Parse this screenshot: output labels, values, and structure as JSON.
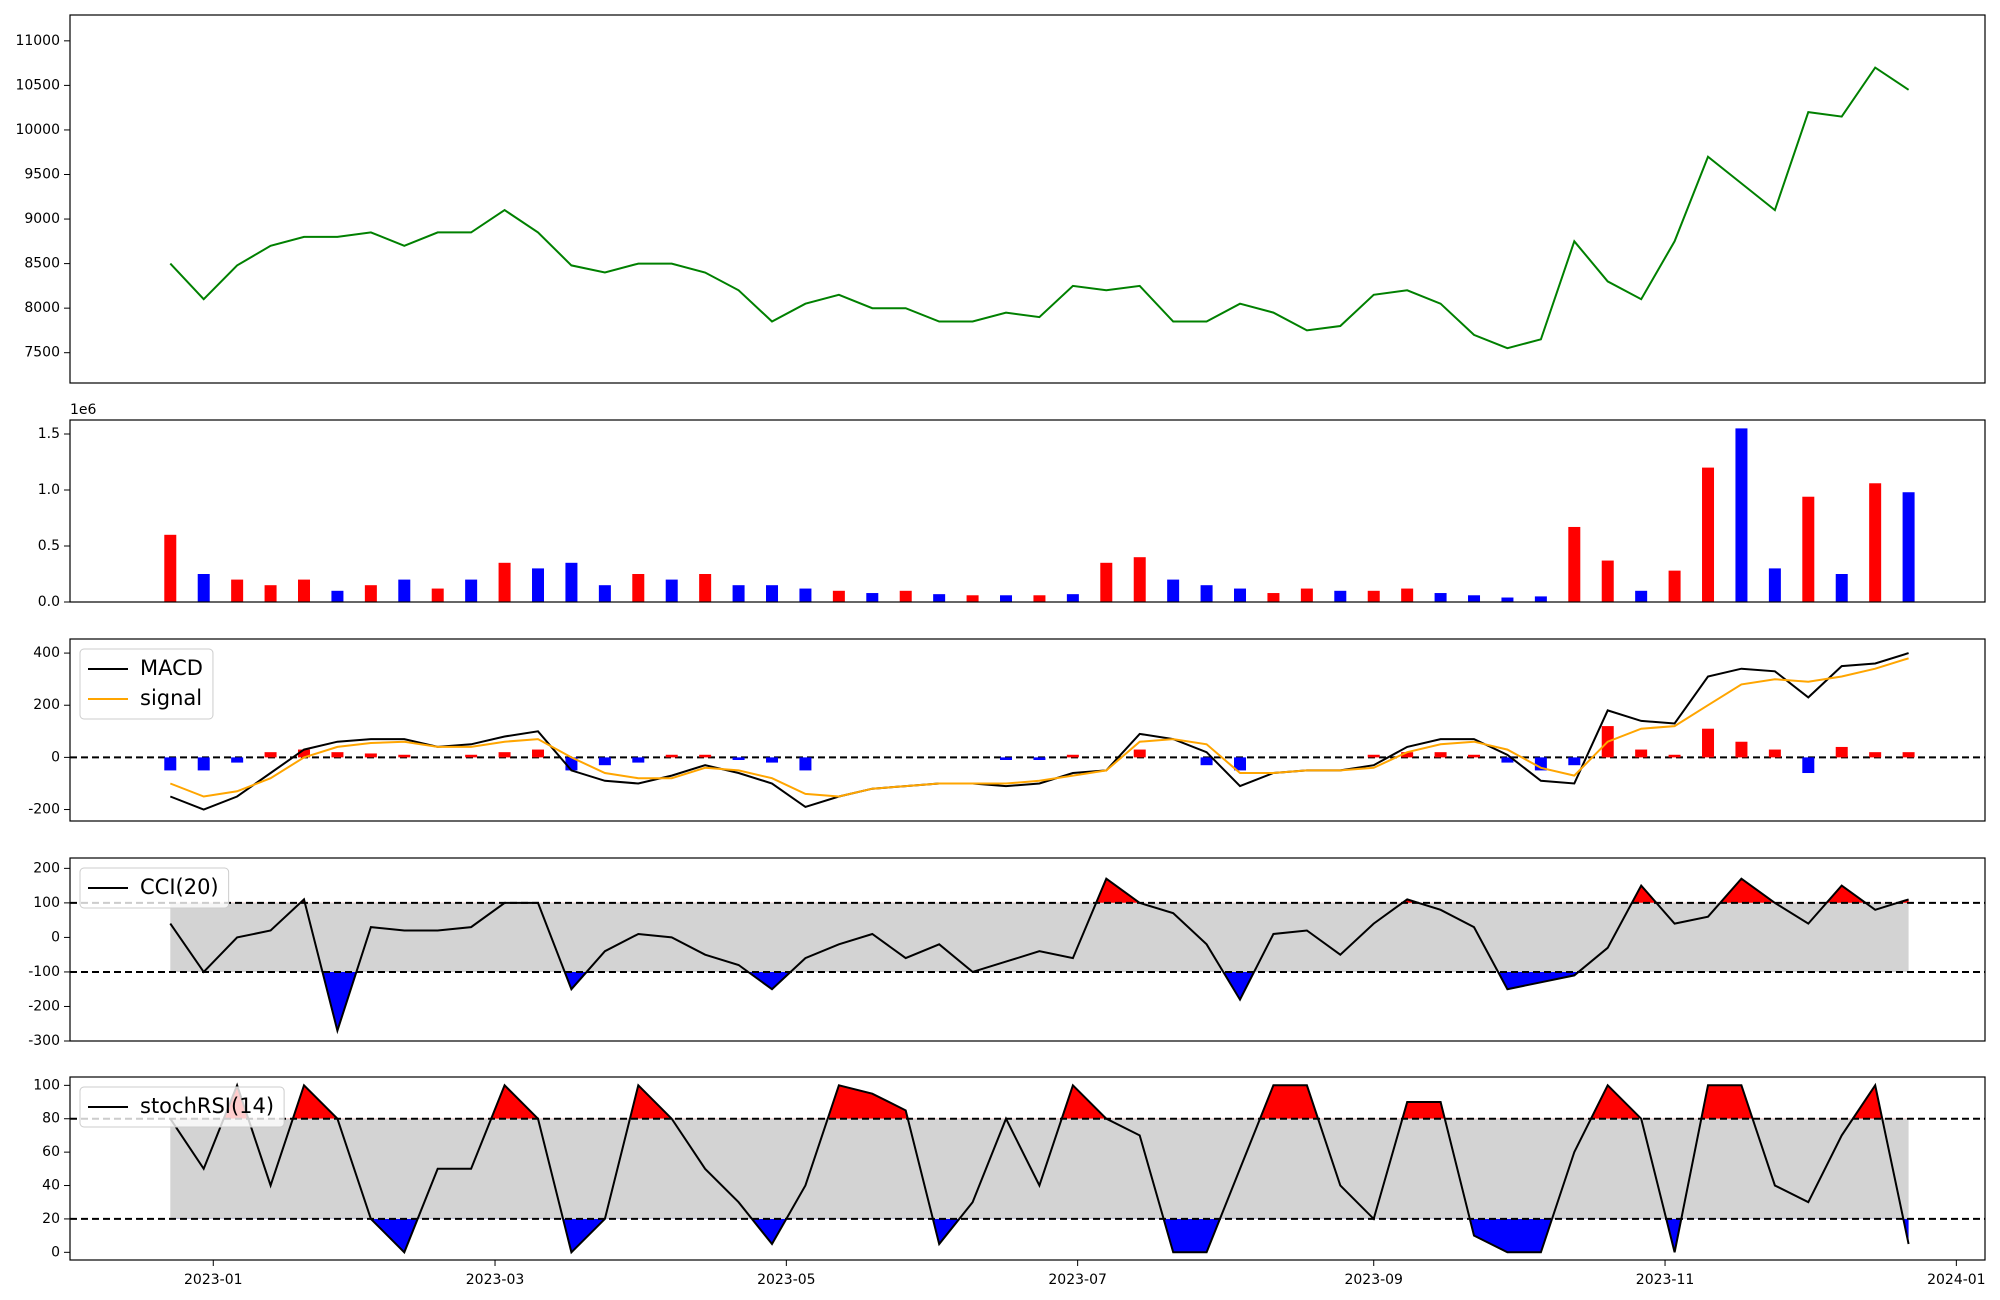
{
  "chart_data": [
    {
      "type": "line",
      "xlim": [
        -30,
        371
      ],
      "ylim": [
        7160,
        11290
      ],
      "yticks": [
        7500,
        8000,
        8500,
        9000,
        9500,
        10000,
        10500,
        11000
      ],
      "x": [
        -9,
        -2,
        5,
        12,
        19,
        26,
        33,
        40,
        47,
        54,
        61,
        68,
        75,
        82,
        89,
        96,
        103,
        110,
        117,
        124,
        131,
        138,
        145,
        152,
        159,
        166,
        173,
        180,
        187,
        194,
        201,
        208,
        215,
        222,
        229,
        236,
        243,
        250,
        257,
        264,
        271,
        278,
        285,
        292,
        299,
        306,
        313,
        320,
        327,
        334,
        341,
        348,
        355
      ],
      "series": [
        {
          "color": "green",
          "values": [
            8500,
            8100,
            8480,
            8700,
            8800,
            8800,
            8850,
            8700,
            8850,
            8850,
            9100,
            8850,
            8480,
            8400,
            8500,
            8500,
            8400,
            8200,
            7850,
            8050,
            8150,
            8000,
            8000,
            7850,
            7850,
            7950,
            7900,
            8250,
            8200,
            8250,
            7850,
            7850,
            8050,
            7950,
            7750,
            7800,
            8150,
            8200,
            8050,
            7700,
            7550,
            7650,
            8750,
            8300,
            8100,
            8750,
            9700,
            9400,
            9100,
            10200,
            10150,
            10700,
            10450
          ]
        }
      ]
    },
    {
      "type": "bar",
      "xlim": [
        -30,
        371
      ],
      "ylim": [
        0,
        1.625
      ],
      "y_offset_label": "1e6",
      "yticks": [
        {
          "value": 0,
          "label": "0.0"
        },
        0.5,
        {
          "value": 1,
          "label": "1.0"
        },
        1.5
      ],
      "x": [
        -9,
        -2,
        5,
        12,
        19,
        26,
        33,
        40,
        47,
        54,
        61,
        68,
        75,
        82,
        89,
        96,
        103,
        110,
        117,
        124,
        131,
        138,
        145,
        152,
        159,
        166,
        173,
        180,
        187,
        194,
        201,
        208,
        215,
        222,
        229,
        236,
        243,
        250,
        257,
        264,
        271,
        278,
        285,
        292,
        299,
        306,
        313,
        320,
        327,
        334,
        341,
        348,
        355
      ],
      "values": [
        0.6,
        0.25,
        0.2,
        0.15,
        0.2,
        0.1,
        0.15,
        0.2,
        0.12,
        0.2,
        0.35,
        0.3,
        0.35,
        0.15,
        0.25,
        0.2,
        0.25,
        0.15,
        0.15,
        0.12,
        0.1,
        0.08,
        0.1,
        0.07,
        0.06,
        0.06,
        0.06,
        0.07,
        0.35,
        0.4,
        0.2,
        0.15,
        0.12,
        0.08,
        0.12,
        0.1,
        0.1,
        0.12,
        0.08,
        0.06,
        0.04,
        0.05,
        0.67,
        0.37,
        0.1,
        0.28,
        1.2,
        1.55,
        0.3,
        0.94,
        0.25,
        1.06,
        0.98
      ],
      "colors": [
        "#f00",
        "#00f",
        "#f00",
        "#f00",
        "#f00",
        "#00f",
        "#f00",
        "#00f",
        "#f00",
        "#00f",
        "#f00",
        "#00f",
        "#00f",
        "#00f",
        "#f00",
        "#00f",
        "#f00",
        "#00f",
        "#00f",
        "#00f",
        "#f00",
        "#00f",
        "#f00",
        "#00f",
        "#f00",
        "#00f",
        "#f00",
        "#00f",
        "#f00",
        "#f00",
        "#00f",
        "#00f",
        "#00f",
        "#f00",
        "#f00",
        "#00f",
        "#f00",
        "#f00",
        "#00f",
        "#00f",
        "#00f",
        "#00f",
        "#f00",
        "#f00",
        "#00f",
        "#f00",
        "#f00",
        "#00f",
        "#00f",
        "#f00",
        "#00f",
        "#f00",
        "#00f"
      ]
    },
    {
      "type": "line",
      "xlim": [
        -30,
        371
      ],
      "ylim": [
        -244,
        454
      ],
      "yticks": [
        -200,
        0,
        200,
        400
      ],
      "hlines": [
        0
      ],
      "legend": "upper left",
      "x": [
        -9,
        -2,
        5,
        12,
        19,
        26,
        33,
        40,
        47,
        54,
        61,
        68,
        75,
        82,
        89,
        96,
        103,
        110,
        117,
        124,
        131,
        138,
        145,
        152,
        159,
        166,
        173,
        180,
        187,
        194,
        201,
        208,
        215,
        222,
        229,
        236,
        243,
        250,
        257,
        264,
        271,
        278,
        285,
        292,
        299,
        306,
        313,
        320,
        327,
        334,
        341,
        348,
        355
      ],
      "series": [
        {
          "name": "MACD",
          "color": "black",
          "values": [
            -150,
            -200,
            -150,
            -60,
            30,
            60,
            70,
            70,
            40,
            50,
            80,
            100,
            -50,
            -90,
            -100,
            -70,
            -30,
            -60,
            -100,
            -190,
            -150,
            -120,
            -110,
            -100,
            -100,
            -110,
            -100,
            -60,
            -50,
            90,
            70,
            20,
            -110,
            -60,
            -50,
            -50,
            -30,
            40,
            70,
            70,
            10,
            -90,
            -100,
            180,
            140,
            130,
            310,
            340,
            330,
            230,
            350,
            360,
            400
          ]
        },
        {
          "name": "signal",
          "color": "orange",
          "values": [
            -100,
            -150,
            -130,
            -80,
            0,
            40,
            55,
            60,
            40,
            40,
            60,
            70,
            0,
            -60,
            -80,
            -80,
            -40,
            -50,
            -80,
            -140,
            -150,
            -120,
            -110,
            -100,
            -100,
            -100,
            -90,
            -70,
            -50,
            60,
            70,
            50,
            -60,
            -60,
            -50,
            -50,
            -40,
            20,
            50,
            60,
            30,
            -40,
            -70,
            60,
            110,
            120,
            200,
            280,
            300,
            290,
            310,
            340,
            380
          ]
        }
      ],
      "histogram": {
        "pos_color": "red",
        "neg_color": "blue",
        "values": [
          -50,
          -50,
          -20,
          20,
          30,
          20,
          15,
          10,
          0,
          10,
          20,
          30,
          -50,
          -30,
          -20,
          10,
          10,
          -10,
          -20,
          -50,
          0,
          0,
          0,
          0,
          0,
          -10,
          -10,
          10,
          0,
          30,
          0,
          -30,
          -50,
          0,
          0,
          0,
          10,
          20,
          20,
          10,
          -20,
          -50,
          -30,
          120,
          30,
          10,
          110,
          60,
          30,
          -60,
          40,
          20,
          20
        ]
      }
    },
    {
      "type": "oscillator",
      "xlim": [
        -30,
        371
      ],
      "ylim": [
        -300,
        230
      ],
      "yticks": [
        -300,
        -200,
        -100,
        0,
        100,
        200
      ],
      "hlines": [
        -100,
        100
      ],
      "legend": "upper left",
      "band_color": "lightgray",
      "above_color": "red",
      "below_color": "blue",
      "x": [
        -9,
        -2,
        5,
        12,
        19,
        26,
        33,
        40,
        47,
        54,
        61,
        68,
        75,
        82,
        89,
        96,
        103,
        110,
        117,
        124,
        131,
        138,
        145,
        152,
        159,
        166,
        173,
        180,
        187,
        194,
        201,
        208,
        215,
        222,
        229,
        236,
        243,
        250,
        257,
        264,
        271,
        278,
        285,
        292,
        299,
        306,
        313,
        320,
        327,
        334,
        341,
        348,
        355
      ],
      "series": [
        {
          "name": "CCI(20)",
          "color": "black",
          "values": [
            40,
            -100,
            0,
            20,
            110,
            -270,
            30,
            20,
            20,
            30,
            100,
            100,
            -150,
            -40,
            10,
            0,
            -50,
            -80,
            -150,
            -60,
            -20,
            10,
            -60,
            -20,
            -100,
            -70,
            -40,
            -60,
            170,
            100,
            70,
            -20,
            -180,
            10,
            20,
            -50,
            40,
            110,
            80,
            30,
            -150,
            -130,
            -110,
            -30,
            150,
            40,
            60,
            170,
            100,
            40,
            150,
            80,
            110
          ]
        }
      ]
    },
    {
      "type": "oscillator",
      "xlim": [
        -30,
        371
      ],
      "ylim": [
        -4.6,
        105
      ],
      "yticks": [
        0,
        20,
        40,
        60,
        80,
        100
      ],
      "hlines": [
        20,
        80
      ],
      "legend": "upper left",
      "band_color": "lightgray",
      "above_color": "red",
      "below_color": "blue",
      "xticks": [
        {
          "value": 0,
          "label": "2023-01"
        },
        {
          "value": 59,
          "label": "2023-03"
        },
        {
          "value": 120,
          "label": "2023-05"
        },
        {
          "value": 181,
          "label": "2023-07"
        },
        {
          "value": 243,
          "label": "2023-09"
        },
        {
          "value": 304,
          "label": "2023-11"
        },
        {
          "value": 365,
          "label": "2024-01"
        }
      ],
      "x": [
        -9,
        -2,
        5,
        12,
        19,
        26,
        33,
        40,
        47,
        54,
        61,
        68,
        75,
        82,
        89,
        96,
        103,
        110,
        117,
        124,
        131,
        138,
        145,
        152,
        159,
        166,
        173,
        180,
        187,
        194,
        201,
        208,
        215,
        222,
        229,
        236,
        243,
        250,
        257,
        264,
        271,
        278,
        285,
        292,
        299,
        306,
        313,
        320,
        327,
        334,
        341,
        348,
        355
      ],
      "series": [
        {
          "name": "stochRSI(14)",
          "color": "black",
          "values": [
            80,
            50,
            100,
            40,
            100,
            80,
            20,
            0,
            50,
            50,
            100,
            80,
            0,
            20,
            100,
            80,
            50,
            30,
            5,
            40,
            100,
            95,
            85,
            5,
            30,
            80,
            40,
            100,
            80,
            70,
            0,
            0,
            50,
            100,
            100,
            40,
            20,
            90,
            90,
            10,
            0,
            0,
            60,
            100,
            80,
            0,
            100,
            100,
            40,
            30,
            70,
            100,
            5
          ]
        }
      ]
    }
  ]
}
